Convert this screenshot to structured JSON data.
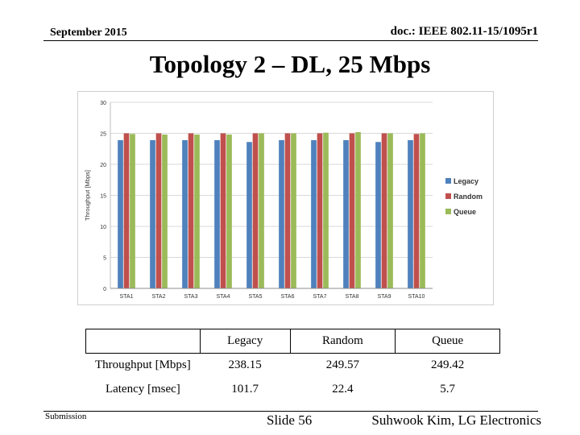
{
  "header": {
    "date": "September 2015",
    "doc_id": "doc.: IEEE 802.11-15/1095r1"
  },
  "title": "Topology 2 – DL, 25 Mbps",
  "chart_data": {
    "type": "bar",
    "categories": [
      "STA1",
      "STA2",
      "STA3",
      "STA4",
      "STA5",
      "STA6",
      "STA7",
      "STA8",
      "STA9",
      "STA10"
    ],
    "series": [
      {
        "name": "Legacy",
        "color": "#4f81bd",
        "values": [
          23.9,
          23.9,
          23.9,
          23.9,
          23.6,
          23.9,
          23.9,
          23.9,
          23.6,
          23.9
        ]
      },
      {
        "name": "Random",
        "color": "#c0504d",
        "values": [
          25.0,
          25.0,
          25.0,
          25.0,
          25.0,
          25.0,
          25.0,
          25.0,
          25.0,
          24.9
        ]
      },
      {
        "name": "Queue",
        "color": "#9bbb59",
        "values": [
          24.9,
          24.8,
          24.8,
          24.8,
          25.0,
          25.0,
          25.1,
          25.2,
          25.0,
          25.0
        ]
      }
    ],
    "ylabel": "Throughput [Mbps]",
    "yticks": [
      0,
      5,
      10,
      15,
      20,
      25,
      30
    ],
    "ylim": [
      0,
      30
    ],
    "grid": true,
    "legend": "right"
  },
  "table": {
    "headers": [
      "",
      "Legacy",
      "Random",
      "Queue"
    ],
    "rows": [
      {
        "label": "Throughput [Mbps]",
        "values": [
          "238.15",
          "249.57",
          "249.42"
        ]
      },
      {
        "label": "Latency [msec]",
        "values": [
          "101.7",
          "22.4",
          "5.7"
        ]
      }
    ]
  },
  "footer": {
    "submission": "Submission",
    "slide": "Slide 56",
    "author": "Suhwook Kim, LG Electronics"
  }
}
